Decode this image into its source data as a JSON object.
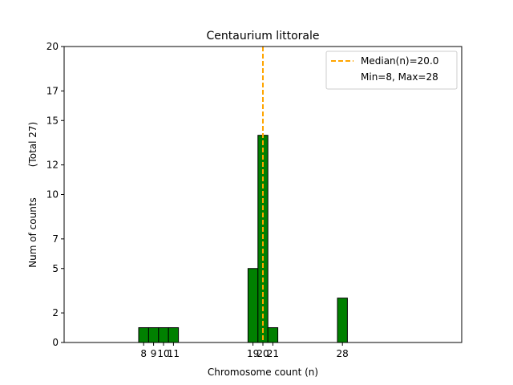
{
  "chart_data": {
    "type": "bar",
    "title": "Centaurium littorale",
    "xlabel": "Chromosome count (n)",
    "ylabel": "Num of counts",
    "ylabel_total": "(Total 27)",
    "xlim": [
      0,
      40
    ],
    "ylim": [
      0,
      20
    ],
    "x": [
      8,
      9,
      10,
      11,
      19,
      20,
      21,
      28
    ],
    "values": [
      1,
      1,
      1,
      1,
      5,
      14,
      1,
      3
    ],
    "bar_width": 1,
    "x_ticks": [
      8,
      9,
      10,
      11,
      19,
      20,
      21,
      28
    ],
    "x_tick_labels": [
      "8",
      "9",
      "10",
      "11",
      "19",
      "20",
      "21",
      "28"
    ],
    "y_ticks": [
      0,
      2,
      5,
      7,
      10,
      12,
      15,
      17,
      20
    ],
    "y_tick_labels": [
      "0",
      "2",
      "5",
      "7",
      "10",
      "12",
      "15",
      "17",
      "20"
    ],
    "baseline_range": [
      0,
      31.8
    ],
    "median": 20.0,
    "legend": {
      "position": "top-right",
      "entries": [
        "Median(n)=20.0",
        "Min=8, Max=28"
      ]
    },
    "colors": {
      "bar_fill": "#008000",
      "bar_edge": "#000000",
      "median_line": "#FFA500",
      "axis": "#000000"
    },
    "grid": false
  }
}
